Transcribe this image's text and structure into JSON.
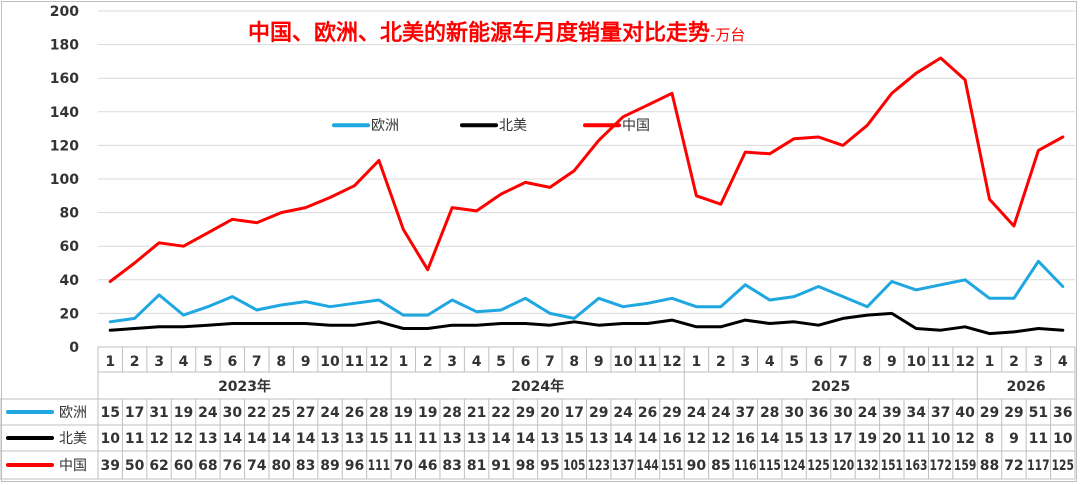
{
  "chart_data": {
    "type": "line",
    "title": "中国、欧洲、北美的新能源车月度销量对比走势",
    "unit_suffix": "-万台",
    "ylim": [
      0,
      200
    ],
    "yticks": [
      0,
      20,
      40,
      60,
      80,
      100,
      120,
      140,
      160,
      180,
      200
    ],
    "grid": true,
    "legend_position": "top-center",
    "categories": [
      "1",
      "2",
      "3",
      "4",
      "5",
      "6",
      "7",
      "8",
      "9",
      "10",
      "11",
      "12",
      "1",
      "2",
      "3",
      "4",
      "5",
      "6",
      "7",
      "8",
      "9",
      "10",
      "11",
      "12",
      "1",
      "2",
      "3",
      "4",
      "5",
      "6",
      "7",
      "8",
      "9",
      "10",
      "11",
      "12",
      "1",
      "2",
      "3",
      "4"
    ],
    "year_groups": [
      {
        "label": "2023年",
        "count": 12
      },
      {
        "label": "2024年",
        "count": 12
      },
      {
        "label": "2025",
        "count": 12
      },
      {
        "label": "2026",
        "count": 4
      }
    ],
    "series": [
      {
        "name": "欧洲",
        "color": "#1ea7e1",
        "values": [
          15,
          17,
          31,
          19,
          24,
          30,
          22,
          25,
          27,
          24,
          26,
          28,
          19,
          19,
          28,
          21,
          22,
          29,
          20,
          17,
          29,
          24,
          26,
          29,
          24,
          24,
          37,
          28,
          30,
          36,
          30,
          24,
          39,
          34,
          37,
          40,
          29,
          29,
          51,
          36
        ]
      },
      {
        "name": "北美",
        "color": "#000000",
        "values": [
          10,
          11,
          12,
          12,
          13,
          14,
          14,
          14,
          14,
          13,
          13,
          15,
          11,
          11,
          13,
          13,
          14,
          14,
          13,
          15,
          13,
          14,
          14,
          16,
          12,
          12,
          16,
          14,
          15,
          13,
          17,
          19,
          20,
          11,
          10,
          12,
          8,
          9,
          11,
          10
        ]
      },
      {
        "name": "中国",
        "color": "#ff0000",
        "values": [
          39,
          50,
          62,
          60,
          68,
          76,
          74,
          80,
          83,
          89,
          96,
          111,
          70,
          46,
          83,
          81,
          91,
          98,
          95,
          105,
          123,
          137,
          144,
          151,
          90,
          85,
          116,
          115,
          124,
          125,
          120,
          132,
          151,
          163,
          172,
          159,
          88,
          72,
          117,
          125
        ]
      }
    ]
  }
}
